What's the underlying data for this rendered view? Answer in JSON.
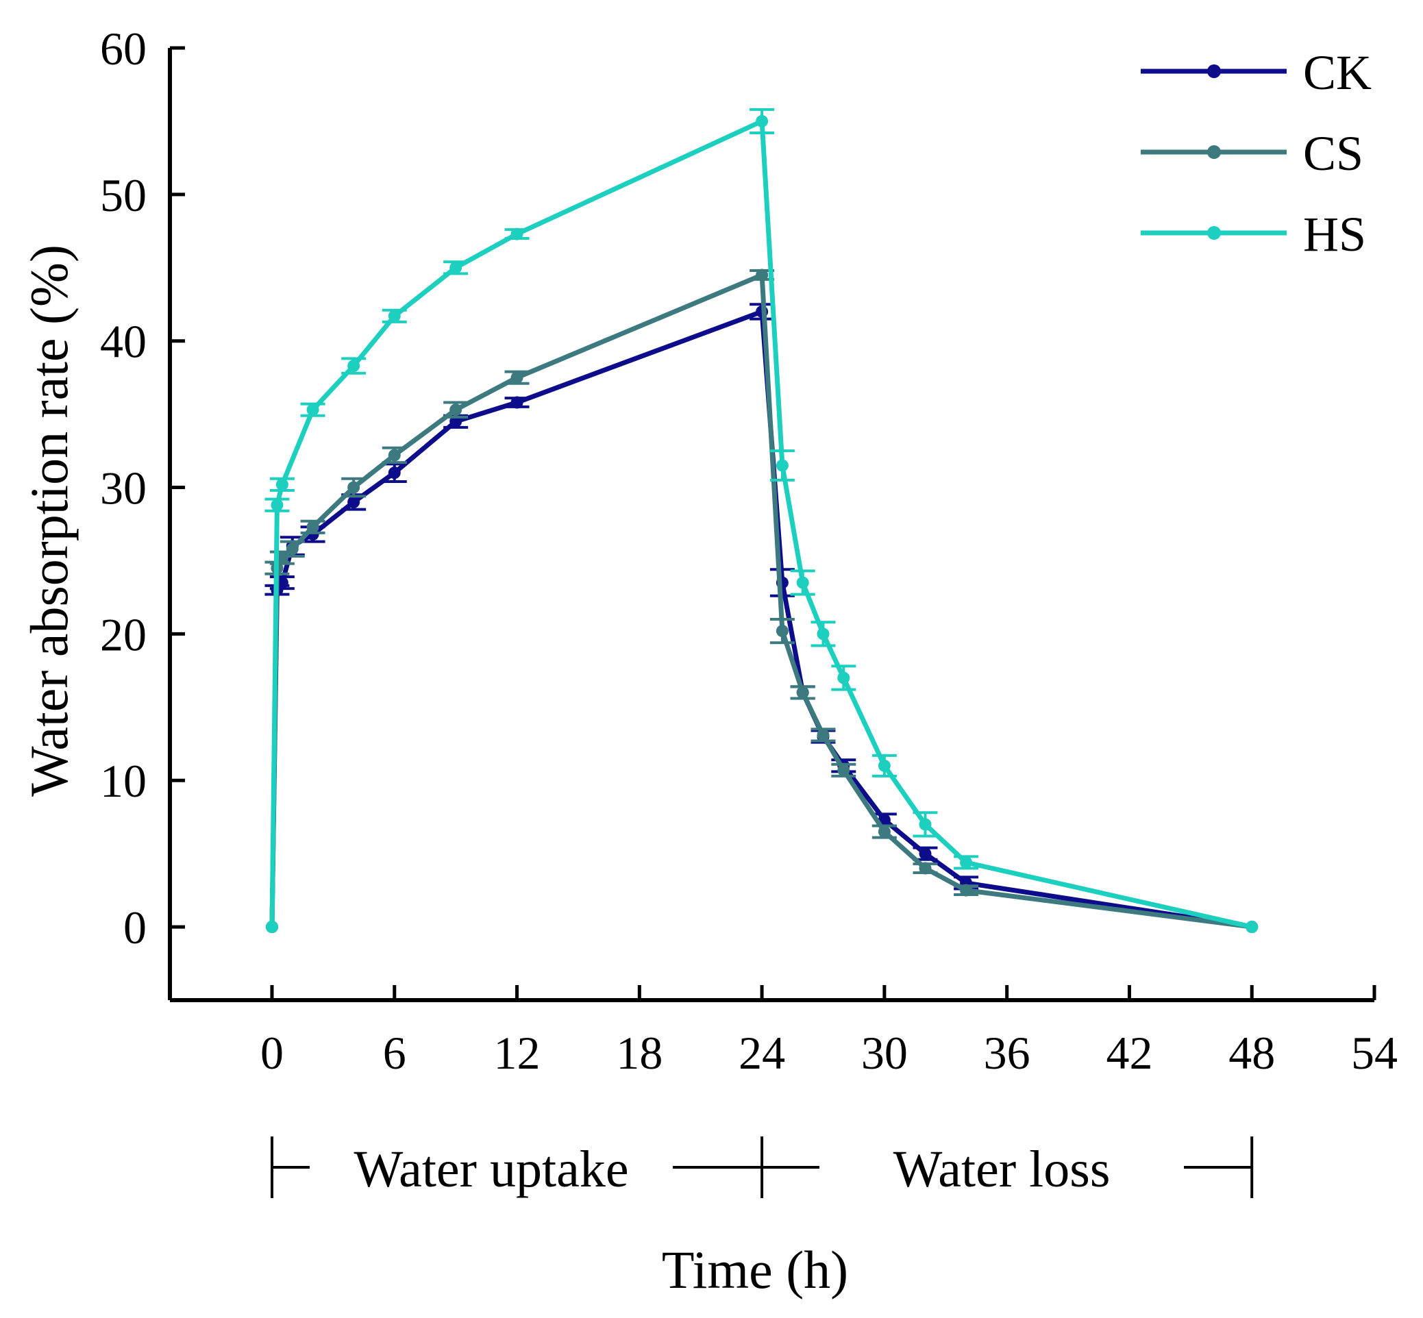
{
  "chart_data": {
    "type": "line",
    "title": "",
    "xlabel": "Time (h)",
    "ylabel": "Water absorption rate (%)",
    "xlim": [
      -5,
      54
    ],
    "ylim": [
      -5,
      60
    ],
    "xticks": [
      0,
      6,
      12,
      18,
      24,
      30,
      36,
      42,
      48,
      54
    ],
    "yticks": [
      0,
      10,
      20,
      30,
      40,
      50,
      60
    ],
    "grid": false,
    "legend_position": "top-right",
    "phases": [
      {
        "label": "Water uptake",
        "start": 0,
        "end": 24
      },
      {
        "label": "Water loss",
        "start": 24,
        "end": 48
      }
    ],
    "series": [
      {
        "name": "CK",
        "color": "#0d0d8c",
        "x": [
          0,
          0.25,
          0.5,
          1,
          2,
          4,
          6,
          9,
          12,
          24,
          25,
          26,
          27,
          28,
          30,
          32,
          34,
          48
        ],
        "y": [
          0,
          23,
          23.5,
          26,
          26.8,
          29,
          31,
          34.5,
          35.8,
          42,
          23.5,
          16,
          13,
          11,
          7.3,
          5,
          3,
          0
        ],
        "err": [
          0,
          0.3,
          0.4,
          0.6,
          0.5,
          0.5,
          0.6,
          0.4,
          0.3,
          0.5,
          0.9,
          0.4,
          0.4,
          0.4,
          0.4,
          0.4,
          0.4,
          0
        ]
      },
      {
        "name": "CS",
        "color": "#3d7a80",
        "x": [
          0,
          0.25,
          0.5,
          1,
          2,
          4,
          6,
          9,
          12,
          24,
          25,
          26,
          27,
          28,
          30,
          32,
          34,
          48
        ],
        "y": [
          0,
          24.5,
          25.2,
          25.8,
          27.3,
          30,
          32.2,
          35.3,
          37.5,
          44.5,
          20.2,
          16,
          13.1,
          10.7,
          6.5,
          4,
          2.5,
          0
        ],
        "err": [
          0,
          0.4,
          0.4,
          0.5,
          0.4,
          0.6,
          0.5,
          0.5,
          0.4,
          0.3,
          0.8,
          0.4,
          0.4,
          0.4,
          0.4,
          0.3,
          0.3,
          0
        ]
      },
      {
        "name": "HS",
        "color": "#1ccfbf",
        "x": [
          0,
          0.25,
          0.5,
          2,
          4,
          6,
          9,
          12,
          24,
          25,
          26,
          27,
          28,
          30,
          32,
          34,
          48
        ],
        "y": [
          0,
          28.8,
          30.2,
          35.3,
          38.3,
          41.7,
          45,
          47.3,
          55,
          31.5,
          23.5,
          20,
          17,
          11,
          7,
          4.4,
          0
        ],
        "err": [
          0,
          0.4,
          0.4,
          0.4,
          0.5,
          0.4,
          0.4,
          0.3,
          0.8,
          1.0,
          0.8,
          0.8,
          0.8,
          0.7,
          0.8,
          0.4,
          0
        ]
      }
    ]
  }
}
